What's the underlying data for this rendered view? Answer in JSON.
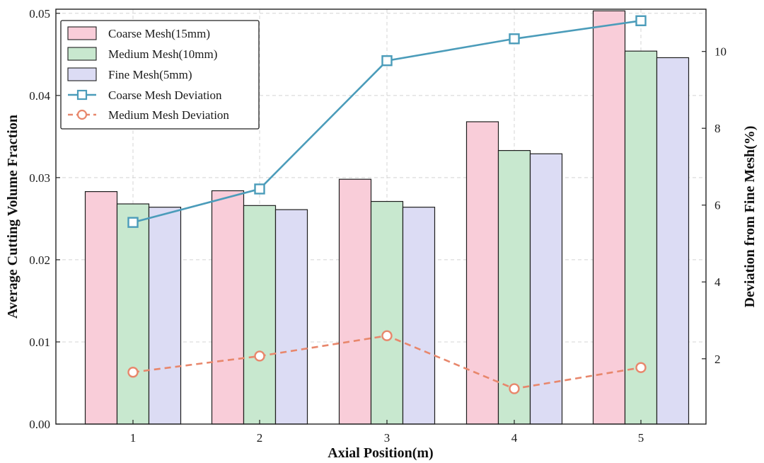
{
  "chart_data": {
    "type": "bar",
    "categories": [
      "1",
      "2",
      "3",
      "4",
      "5"
    ],
    "xlabel": "Axial Position(m)",
    "ylabel": "Average Cutting Volume Fraction",
    "y2label": "Deviation from Fine Mesh(%)",
    "ylim": [
      0,
      0.0505
    ],
    "y2lim": [
      0.3,
      11.1
    ],
    "yticks": [
      "0.00",
      "0.01",
      "0.02",
      "0.03",
      "0.04",
      "0.05"
    ],
    "y2ticks": [
      "2",
      "4",
      "6",
      "8",
      "10"
    ],
    "grid": true,
    "legend_position": "top-left",
    "bar_series": [
      {
        "name": "Coarse Mesh(15mm)",
        "values": [
          0.0283,
          0.0284,
          0.0298,
          0.0368,
          0.0503
        ],
        "color": "#f9cdd9"
      },
      {
        "name": "Medium Mesh(10mm)",
        "values": [
          0.0268,
          0.0266,
          0.0271,
          0.0333,
          0.0454
        ],
        "color": "#c8e8cf"
      },
      {
        "name": "Fine Mesh(5mm)",
        "values": [
          0.0264,
          0.0261,
          0.0264,
          0.0329,
          0.0446
        ],
        "color": "#dcdcf4"
      }
    ],
    "line_series": [
      {
        "name": "Coarse Mesh Deviation",
        "values": [
          5.55,
          6.42,
          9.76,
          10.33,
          10.8
        ],
        "color": "#4b9cba",
        "marker": "square",
        "dashed": false
      },
      {
        "name": "Medium Mesh Deviation",
        "values": [
          1.65,
          2.07,
          2.6,
          1.22,
          1.77
        ],
        "color": "#e8876c",
        "marker": "circle",
        "dashed": true
      }
    ]
  }
}
